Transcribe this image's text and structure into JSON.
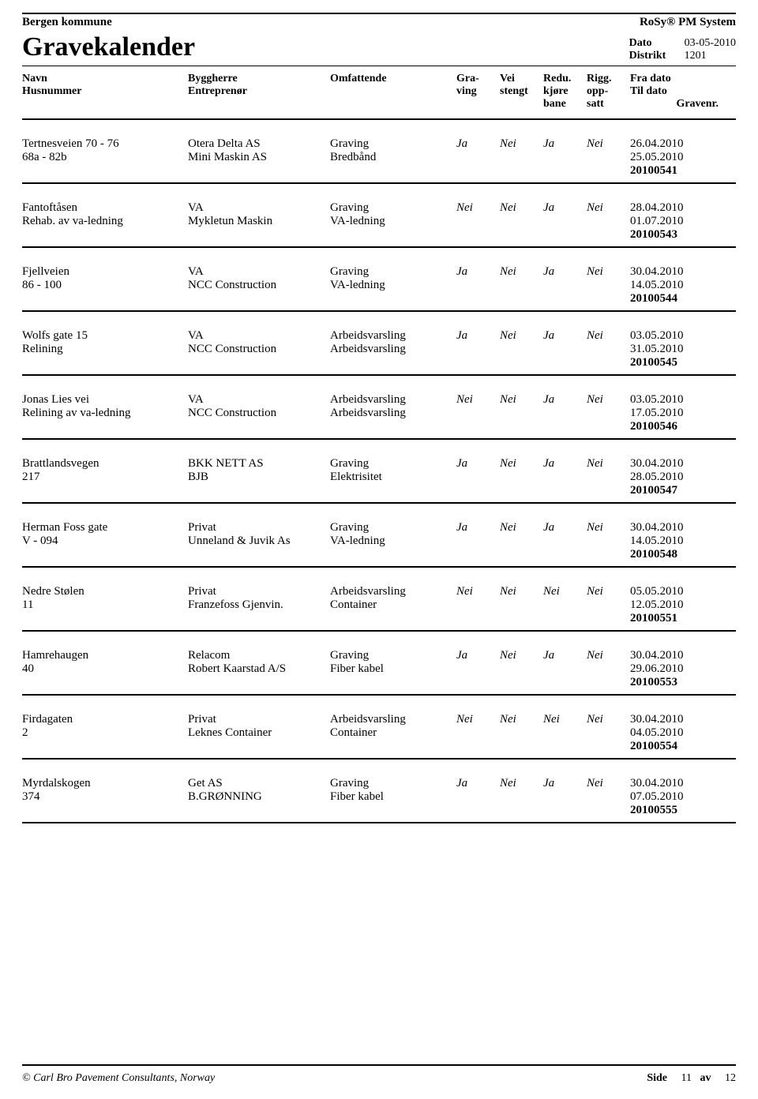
{
  "header": {
    "kommune": "Bergen kommune",
    "system": "RoSy®  PM System",
    "title": "Gravekalender",
    "meta": {
      "dato_label": "Dato",
      "dato_value": "03-05-2010",
      "distrikt_label": "Distrikt",
      "distrikt_value": "1201"
    }
  },
  "columns": {
    "name1": "Navn",
    "name2": "Husnummer",
    "bygg1": "Byggherre",
    "bygg2": "Entreprenør",
    "omf": "Omfattende",
    "grav1": "Gra-",
    "grav2": "ving",
    "vei1": "Vei",
    "vei2": "stengt",
    "redu1": "Redu.",
    "redu2": "kjøre",
    "redu3": "bane",
    "rigg1": "Rigg.",
    "rigg2": "opp-",
    "rigg3": "satt",
    "date1": "Fra dato",
    "date2": "Til dato",
    "date3": "Gravenr."
  },
  "entries": [
    {
      "name1": "Tertnesveien 70 - 76",
      "name2": "68a - 82b",
      "bygg1": "Otera Delta AS",
      "bygg2": "Mini Maskin AS",
      "omf1": "Graving",
      "omf2": "Bredbånd",
      "grav": "Ja",
      "vei": "Nei",
      "redu": "Ja",
      "rigg": "Nei",
      "d1": "26.04.2010",
      "d2": "25.05.2010",
      "nr": "20100541"
    },
    {
      "name1": "Fantoftåsen",
      "name2": "Rehab. av va-ledning",
      "bygg1": "VA",
      "bygg2": "Mykletun Maskin",
      "omf1": "Graving",
      "omf2": "VA-ledning",
      "grav": "Nei",
      "vei": "Nei",
      "redu": "Ja",
      "rigg": "Nei",
      "d1": "28.04.2010",
      "d2": "01.07.2010",
      "nr": "20100543"
    },
    {
      "name1": "Fjellveien",
      "name2": "86 - 100",
      "bygg1": "VA",
      "bygg2": "NCC Construction",
      "omf1": "Graving",
      "omf2": "VA-ledning",
      "grav": "Ja",
      "vei": "Nei",
      "redu": "Ja",
      "rigg": "Nei",
      "d1": "30.04.2010",
      "d2": "14.05.2010",
      "nr": "20100544"
    },
    {
      "name1": "Wolfs gate 15",
      "name2": "Relining",
      "bygg1": "VA",
      "bygg2": "NCC Construction",
      "omf1": "Arbeidsvarsling",
      "omf2": "Arbeidsvarsling",
      "grav": "Ja",
      "vei": "Nei",
      "redu": "Ja",
      "rigg": "Nei",
      "d1": "03.05.2010",
      "d2": "31.05.2010",
      "nr": "20100545"
    },
    {
      "name1": "Jonas Lies vei",
      "name2": "Relining av va-ledning",
      "bygg1": "VA",
      "bygg2": "NCC Construction",
      "omf1": "Arbeidsvarsling",
      "omf2": "Arbeidsvarsling",
      "grav": "Nei",
      "vei": "Nei",
      "redu": "Ja",
      "rigg": "Nei",
      "d1": "03.05.2010",
      "d2": "17.05.2010",
      "nr": "20100546"
    },
    {
      "name1": "Brattlandsvegen",
      "name2": "217",
      "bygg1": "BKK NETT AS",
      "bygg2": "BJB",
      "omf1": "Graving",
      "omf2": "Elektrisitet",
      "grav": "Ja",
      "vei": "Nei",
      "redu": "Ja",
      "rigg": "Nei",
      "d1": "30.04.2010",
      "d2": "28.05.2010",
      "nr": "20100547"
    },
    {
      "name1": "Herman Foss gate",
      "name2": "V - 094",
      "bygg1": "Privat",
      "bygg2": "Unneland & Juvik As",
      "omf1": "Graving",
      "omf2": "VA-ledning",
      "grav": "Ja",
      "vei": "Nei",
      "redu": "Ja",
      "rigg": "Nei",
      "d1": "30.04.2010",
      "d2": "14.05.2010",
      "nr": "20100548"
    },
    {
      "name1": "Nedre Stølen",
      "name2": "11",
      "bygg1": "Privat",
      "bygg2": "Franzefoss Gjenvin.",
      "omf1": "Arbeidsvarsling",
      "omf2": "Container",
      "grav": "Nei",
      "vei": "Nei",
      "redu": "Nei",
      "rigg": "Nei",
      "d1": "05.05.2010",
      "d2": "12.05.2010",
      "nr": "20100551"
    },
    {
      "name1": "Hamrehaugen",
      "name2": "40",
      "bygg1": "Relacom",
      "bygg2": "Robert Kaarstad A/S",
      "omf1": "Graving",
      "omf2": "Fiber kabel",
      "grav": "Ja",
      "vei": "Nei",
      "redu": "Ja",
      "rigg": "Nei",
      "d1": "30.04.2010",
      "d2": "29.06.2010",
      "nr": "20100553"
    },
    {
      "name1": "Firdagaten",
      "name2": "2",
      "bygg1": "Privat",
      "bygg2": "Leknes Container",
      "omf1": "Arbeidsvarsling",
      "omf2": "Container",
      "grav": "Nei",
      "vei": "Nei",
      "redu": "Nei",
      "rigg": "Nei",
      "d1": "30.04.2010",
      "d2": "04.05.2010",
      "nr": "20100554"
    },
    {
      "name1": "Myrdalskogen",
      "name2": "374",
      "bygg1": "Get AS",
      "bygg2": "B.GRØNNING",
      "omf1": "Graving",
      "omf2": "Fiber kabel",
      "grav": "Ja",
      "vei": "Nei",
      "redu": "Ja",
      "rigg": "Nei",
      "d1": "30.04.2010",
      "d2": "07.05.2010",
      "nr": "20100555"
    }
  ],
  "footer": {
    "copyright": "© Carl Bro Pavement Consultants, Norway",
    "side_label": "Side",
    "page": "11",
    "av_label": "av",
    "total": "12"
  }
}
